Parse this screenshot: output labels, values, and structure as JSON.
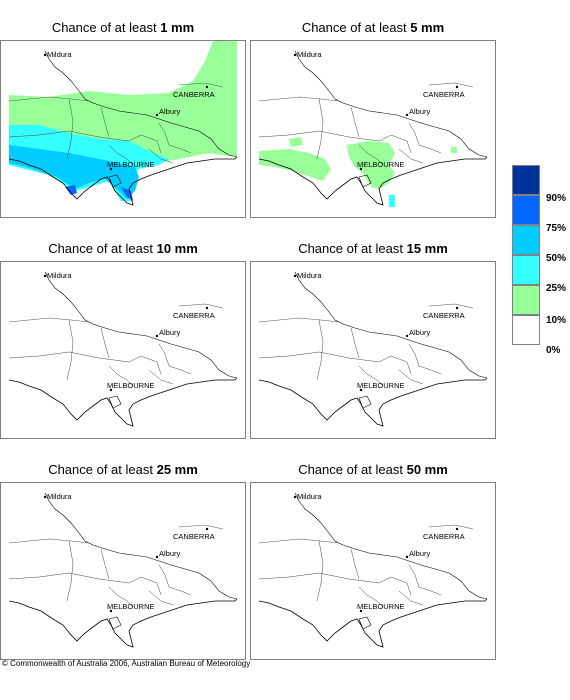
{
  "panels": [
    {
      "prefix": "Chance of at least ",
      "amount": "1 mm",
      "coverage": "heavy"
    },
    {
      "prefix": "Chance of at least ",
      "amount": "5 mm",
      "coverage": "light"
    },
    {
      "prefix": "Chance of at least ",
      "amount": "10 mm",
      "coverage": "none"
    },
    {
      "prefix": "Chance of at least ",
      "amount": "15 mm",
      "coverage": "none"
    },
    {
      "prefix": "Chance of at least ",
      "amount": "25 mm",
      "coverage": "none"
    },
    {
      "prefix": "Chance of at least ",
      "amount": "50 mm",
      "coverage": "none"
    }
  ],
  "cities": {
    "mildura": "Mildura",
    "canberra": "CANBERRA",
    "albury": "Albury",
    "melbourne": "MELBOURNE"
  },
  "legend": {
    "levels": [
      {
        "label": "90%",
        "color": "#003399"
      },
      {
        "label": "75%",
        "color": "#0066ff"
      },
      {
        "label": "50%",
        "color": "#00ccff"
      },
      {
        "label": "25%",
        "color": "#33ffff"
      },
      {
        "label": "10%",
        "color": "#99ff99"
      },
      {
        "label": "0%",
        "color": "#ffffff"
      }
    ]
  },
  "footer": "© Commonwealth of Australia 2006, Australian Bureau of Meteorology"
}
